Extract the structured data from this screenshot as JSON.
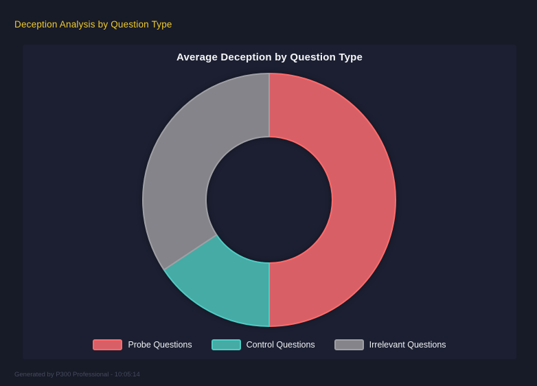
{
  "header": {
    "title": "Deception Analysis by Question Type"
  },
  "footer": {
    "text": "Generated by P300 Professional - 10:05:14"
  },
  "colors": {
    "page_bg": "#171a27",
    "panel_bg": "#1b1f31",
    "header_text": "#f0cb2b",
    "chart_title_text": "#f4f5f7",
    "legend_text": "#eef0f3",
    "footer_text": "#454b5e"
  },
  "chart_data": {
    "type": "pie",
    "variant": "donut",
    "title": "Average Deception by Question Type",
    "cutout_percent": 50,
    "legend_position": "bottom",
    "rotation_deg_from_top": 0,
    "categories": [
      "Probe Questions",
      "Control Questions",
      "Irrelevant Questions"
    ],
    "values_percent": [
      50.0,
      15.7,
      34.3
    ],
    "segments": [
      {
        "label": "Probe Questions",
        "percent": 50.0,
        "start_angle": 0,
        "end_angle": 180,
        "fill": "#d85f66",
        "border": "#ff6b6b"
      },
      {
        "label": "Control Questions",
        "percent": 15.7,
        "start_angle": 180,
        "end_angle": 236.4,
        "fill": "#45aba4",
        "border": "#4ecdc4"
      },
      {
        "label": "Irrelevant Questions",
        "percent": 34.3,
        "start_angle": 236.4,
        "end_angle": 360,
        "fill": "#85848a",
        "border": "#9fa0a5"
      }
    ]
  }
}
